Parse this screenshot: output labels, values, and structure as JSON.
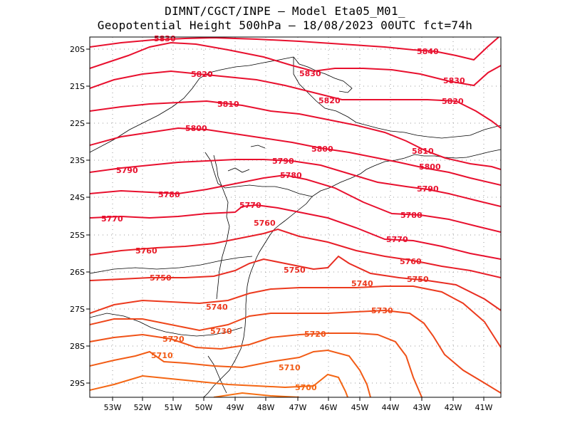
{
  "header": {
    "line1": "DIMNT/CGCT/INPE –  Model Eta05_M01_",
    "line2": "Geopotential Height 500hPa –  18/08/2023 00UTC fct=74h"
  },
  "axes": {
    "x_ticks": [
      "53W",
      "52W",
      "51W",
      "50W",
      "49W",
      "48W",
      "47W",
      "46W",
      "45W",
      "44W",
      "43W",
      "42W",
      "41W"
    ],
    "y_ticks": [
      "20S",
      "21S",
      "22S",
      "23S",
      "24S",
      "25S",
      "26S",
      "27S",
      "28S",
      "29S"
    ]
  },
  "contours": [
    {
      "value": "5840",
      "color": "#e8102e"
    },
    {
      "value": "5830",
      "color": "#e8102e"
    },
    {
      "value": "5820",
      "color": "#e8102e"
    },
    {
      "value": "5810",
      "color": "#e8102e"
    },
    {
      "value": "5800",
      "color": "#e8102e"
    },
    {
      "value": "5790",
      "color": "#e8102e"
    },
    {
      "value": "5780",
      "color": "#e8102e"
    },
    {
      "value": "5770",
      "color": "#e8102e"
    },
    {
      "value": "5760",
      "color": "#e81e28"
    },
    {
      "value": "5750",
      "color": "#e82d22"
    },
    {
      "value": "5740",
      "color": "#ec3a1e"
    },
    {
      "value": "5730",
      "color": "#ee461a"
    },
    {
      "value": "5720",
      "color": "#f05218"
    },
    {
      "value": "5710",
      "color": "#f25c16"
    },
    {
      "value": "5700",
      "color": "#f46614"
    }
  ],
  "colors": {
    "grid": "#9a9a9a",
    "coast": "#000000"
  }
}
